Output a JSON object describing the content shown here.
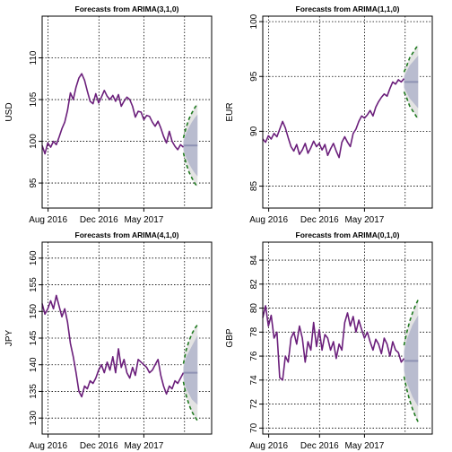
{
  "colors": {
    "history": "#6B1F7B",
    "forecast": "#8E92B3",
    "pi80": "#B9BCCF",
    "pi95": "#E3E3E3",
    "bounds": "#1F7A1F",
    "grid": "#000000"
  },
  "chart_data": [
    {
      "type": "line",
      "title": "Forecasts from ARIMA(3,1,0)",
      "ylabel": "USD",
      "xlabel": "",
      "ylim": [
        92,
        115
      ],
      "yticks": [
        95,
        100,
        105,
        110
      ],
      "xticks": [
        "Aug 2016",
        "Dec 2016",
        "May 2017"
      ],
      "xlim": [
        0,
        60
      ],
      "grid": true,
      "history": {
        "x": [
          0,
          1,
          2,
          3,
          4,
          5,
          6,
          7,
          8,
          9,
          10,
          11,
          12,
          13,
          14,
          15,
          16,
          17,
          18,
          19,
          20,
          21,
          22,
          23,
          24,
          25,
          26,
          27,
          28,
          29,
          30,
          31,
          32,
          33,
          34,
          35,
          36,
          37,
          38,
          39,
          40,
          41,
          42,
          43,
          44,
          45,
          46,
          47,
          48,
          49,
          50
        ],
        "y": [
          99.5,
          98.5,
          99.8,
          99.3,
          100.0,
          99.6,
          100.5,
          101.5,
          102.3,
          103.7,
          105.8,
          105.0,
          106.5,
          107.6,
          108.1,
          107.3,
          106.0,
          104.8,
          104.5,
          105.7,
          104.6,
          105.3,
          106.1,
          105.4,
          105.0,
          105.5,
          104.8,
          105.6,
          104.2,
          104.8,
          105.3,
          105.0,
          104.2,
          102.9,
          103.6,
          103.5,
          102.6,
          103.1,
          103.0,
          102.3,
          101.8,
          102.4,
          101.6,
          100.6,
          99.8,
          101.2,
          100.0,
          99.4,
          99.0,
          99.6,
          99.3
        ]
      },
      "forecast": {
        "x": [
          50,
          51,
          52,
          53,
          54,
          55
        ],
        "mean": [
          99.5,
          99.5,
          99.5,
          99.5,
          99.5,
          99.5
        ],
        "lo80": [
          99.0,
          98.0,
          97.3,
          96.7,
          96.2,
          95.8
        ],
        "hi80": [
          100.0,
          101.0,
          101.7,
          102.3,
          102.8,
          103.2
        ],
        "lo95": [
          98.6,
          97.3,
          96.3,
          95.6,
          95.0,
          94.5
        ],
        "hi95": [
          100.4,
          101.7,
          102.7,
          103.4,
          104.0,
          104.5
        ]
      }
    },
    {
      "type": "line",
      "title": "Forecasts from ARIMA(1,1,0)",
      "ylabel": "EUR",
      "xlabel": "",
      "ylim": [
        83,
        100.5
      ],
      "yticks": [
        85,
        90,
        95,
        100
      ],
      "xticks": [
        "Aug 2016",
        "Dec 2016",
        "May 2017"
      ],
      "xlim": [
        0,
        60
      ],
      "grid": true,
      "history": {
        "x": [
          0,
          1,
          2,
          3,
          4,
          5,
          6,
          7,
          8,
          9,
          10,
          11,
          12,
          13,
          14,
          15,
          16,
          17,
          18,
          19,
          20,
          21,
          22,
          23,
          24,
          25,
          26,
          27,
          28,
          29,
          30,
          31,
          32,
          33,
          34,
          35,
          36,
          37,
          38,
          39,
          40,
          41,
          42,
          43,
          44,
          45,
          46,
          47,
          48,
          49,
          50
        ],
        "y": [
          89.3,
          89.0,
          89.6,
          89.3,
          89.8,
          89.5,
          90.2,
          90.9,
          90.3,
          89.4,
          88.6,
          88.2,
          88.8,
          87.9,
          88.3,
          88.9,
          88.0,
          88.5,
          89.1,
          88.6,
          88.9,
          88.3,
          88.8,
          87.8,
          88.4,
          88.9,
          88.2,
          87.6,
          89.0,
          89.5,
          89.0,
          88.6,
          89.8,
          90.2,
          90.9,
          91.4,
          91.2,
          91.5,
          91.9,
          91.4,
          92.2,
          92.7,
          93.1,
          93.4,
          93.2,
          93.9,
          94.5,
          94.3,
          94.7,
          94.5,
          94.8
        ]
      },
      "forecast": {
        "x": [
          50,
          51,
          52,
          53,
          54,
          55
        ],
        "mean": [
          94.5,
          94.5,
          94.5,
          94.5,
          94.5,
          94.5
        ],
        "lo80": [
          94.0,
          93.5,
          93.0,
          92.7,
          92.4,
          92.1
        ],
        "hi80": [
          95.0,
          95.5,
          96.0,
          96.3,
          96.6,
          96.9
        ],
        "lo95": [
          93.6,
          93.0,
          92.3,
          91.9,
          91.5,
          91.1
        ],
        "hi95": [
          95.4,
          96.0,
          96.7,
          97.1,
          97.5,
          97.9
        ]
      }
    },
    {
      "type": "line",
      "title": "Forecasts from ARIMA(4,1,0)",
      "ylabel": "JPY",
      "xlabel": "",
      "ylim": [
        127,
        163
      ],
      "yticks": [
        130,
        135,
        140,
        145,
        150,
        155,
        160
      ],
      "xticks": [
        "Aug 2016",
        "Dec 2016",
        "May 2017"
      ],
      "xlim": [
        0,
        60
      ],
      "grid": true,
      "history": {
        "x": [
          0,
          1,
          2,
          3,
          4,
          5,
          6,
          7,
          8,
          9,
          10,
          11,
          12,
          13,
          14,
          15,
          16,
          17,
          18,
          19,
          20,
          21,
          22,
          23,
          24,
          25,
          26,
          27,
          28,
          29,
          30,
          31,
          32,
          33,
          34,
          35,
          36,
          37,
          38,
          39,
          40,
          41,
          42,
          43,
          44,
          45,
          46,
          47,
          48,
          49,
          50
        ],
        "y": [
          151.5,
          149.5,
          150.5,
          152.0,
          150.5,
          153.0,
          151.0,
          149.0,
          150.5,
          148.0,
          144.0,
          141.5,
          138.5,
          135.0,
          134.0,
          136.0,
          135.5,
          137.0,
          136.5,
          137.5,
          139.0,
          140.0,
          138.5,
          140.5,
          139.0,
          141.5,
          138.5,
          143.0,
          139.5,
          141.0,
          138.5,
          137.5,
          139.5,
          138.0,
          141.0,
          140.5,
          140.0,
          139.5,
          138.5,
          139.0,
          140.0,
          141.0,
          138.0,
          136.0,
          134.5,
          136.0,
          135.5,
          137.0,
          136.5,
          137.5,
          138.5
        ]
      },
      "forecast": {
        "x": [
          50,
          51,
          52,
          53,
          54,
          55
        ],
        "mean": [
          138.5,
          138.5,
          138.5,
          138.5,
          138.5,
          138.5
        ],
        "lo80": [
          137.5,
          135.5,
          134.5,
          133.5,
          133.0,
          132.5
        ],
        "hi80": [
          139.5,
          141.5,
          142.5,
          143.5,
          144.5,
          145.5
        ],
        "lo95": [
          136.8,
          134.2,
          132.5,
          131.2,
          130.3,
          129.5
        ],
        "hi95": [
          140.2,
          142.8,
          144.5,
          145.8,
          146.8,
          147.5
        ]
      }
    },
    {
      "type": "line",
      "title": "Forecasts from ARIMA(0,1,0)",
      "ylabel": "GBP",
      "xlabel": "",
      "ylim": [
        69.5,
        85.5
      ],
      "yticks": [
        70,
        72,
        74,
        76,
        78,
        80,
        82,
        84
      ],
      "xticks": [
        "Aug 2016",
        "Dec 2016",
        "May 2017"
      ],
      "xlim": [
        0,
        60
      ],
      "grid": true,
      "history": {
        "x": [
          0,
          1,
          2,
          3,
          4,
          5,
          6,
          7,
          8,
          9,
          10,
          11,
          12,
          13,
          14,
          15,
          16,
          17,
          18,
          19,
          20,
          21,
          22,
          23,
          24,
          25,
          26,
          27,
          28,
          29,
          30,
          31,
          32,
          33,
          34,
          35,
          36,
          37,
          38,
          39,
          40,
          41,
          42,
          43,
          44,
          45,
          46,
          47,
          48,
          49,
          50
        ],
        "y": [
          79.2,
          80.2,
          78.5,
          79.4,
          77.5,
          78.0,
          74.2,
          74.0,
          76.0,
          75.5,
          77.5,
          78.0,
          77.0,
          78.5,
          77.5,
          75.5,
          77.2,
          76.5,
          78.8,
          76.8,
          78.2,
          76.5,
          77.8,
          77.5,
          76.5,
          77.2,
          75.8,
          77.0,
          76.5,
          78.8,
          79.6,
          78.5,
          79.3,
          78.0,
          79.0,
          78.2,
          77.5,
          78.0,
          77.2,
          76.5,
          77.4,
          77.0,
          76.2,
          77.5,
          77.0,
          76.0,
          77.2,
          76.5,
          76.3,
          75.5,
          75.8
        ]
      },
      "forecast": {
        "x": [
          50,
          51,
          52,
          53,
          54,
          55
        ],
        "mean": [
          75.6,
          75.6,
          75.6,
          75.6,
          75.6,
          75.6
        ],
        "lo80": [
          74.8,
          73.8,
          73.2,
          72.6,
          72.2,
          71.8
        ],
        "hi80": [
          76.4,
          77.4,
          78.0,
          78.6,
          79.0,
          79.4
        ],
        "lo95": [
          74.3,
          73.2,
          72.3,
          71.6,
          71.0,
          70.5
        ],
        "hi95": [
          76.9,
          78.0,
          78.9,
          79.6,
          80.2,
          80.7
        ]
      }
    }
  ]
}
